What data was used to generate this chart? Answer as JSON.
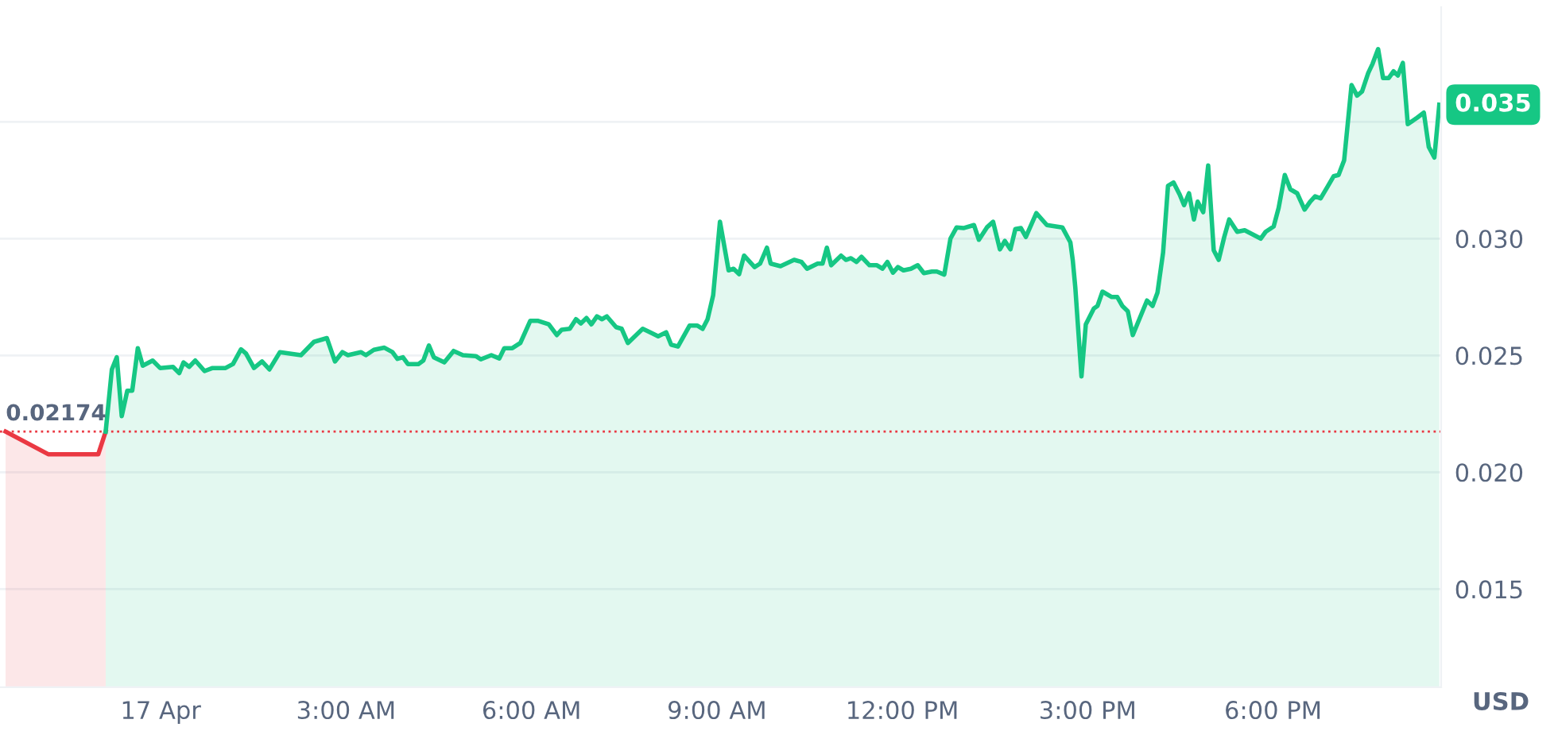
{
  "chart_data": {
    "type": "area",
    "xlim": [
      -2.6,
      20.72
    ],
    "ylim": [
      0.0108,
      0.0399
    ],
    "xticks": [
      {
        "value": 0,
        "label": "17 Apr"
      },
      {
        "value": 3,
        "label": "3:00 AM"
      },
      {
        "value": 6,
        "label": "6:00 AM"
      },
      {
        "value": 9,
        "label": "9:00 AM"
      },
      {
        "value": 12,
        "label": "12:00 PM"
      },
      {
        "value": 15,
        "label": "3:00 PM"
      },
      {
        "value": 18,
        "label": "6:00 PM"
      }
    ],
    "yticks": [
      0.015,
      {
        "value": 0.02,
        "label": "0.020"
      },
      0.025,
      {
        "value": 0.03,
        "label": "0.030"
      },
      {
        "value": 0.035,
        "label": null
      }
    ],
    "ylabel": "USD",
    "grid": "y",
    "legend": false,
    "ref_lines": [
      {
        "axis": "y",
        "value": 0.02174,
        "label": "0.02174",
        "color": "#ea3943",
        "line_style": "dotted"
      }
    ],
    "annotations": [
      {
        "text": "0.035",
        "x": 20.69,
        "y": 0.03573
      }
    ],
    "series": [
      {
        "color": "#ea3943",
        "x": [
          -2.51,
          -1.82,
          -1.01,
          -0.89
        ],
        "values": [
          0.02174,
          0.02077,
          0.02077,
          0.02174
        ]
      },
      {
        "color": "#16c784",
        "x": [
          -0.89,
          -0.79,
          -0.71,
          -0.63,
          -0.54,
          -0.46,
          -0.37,
          -0.29,
          -0.13,
          -0.01,
          0.2,
          0.3,
          0.37,
          0.46,
          0.56,
          0.71,
          0.84,
          1.05,
          1.17,
          1.3,
          1.38,
          1.51,
          1.64,
          1.76,
          1.93,
          2.27,
          2.48,
          2.69,
          2.82,
          2.94,
          3.03,
          3.24,
          3.32,
          3.45,
          3.62,
          3.75,
          3.83,
          3.92,
          4.0,
          4.17,
          4.25,
          4.34,
          4.42,
          4.59,
          4.74,
          4.89,
          5.1,
          5.18,
          5.35,
          5.48,
          5.56,
          5.69,
          5.82,
          5.98,
          6.11,
          6.28,
          6.41,
          6.49,
          6.62,
          6.72,
          6.8,
          6.89,
          6.97,
          7.06,
          7.14,
          7.22,
          7.37,
          7.46,
          7.56,
          7.8,
          7.92,
          8.05,
          8.18,
          8.26,
          8.37,
          8.56,
          8.68,
          8.77,
          8.85,
          8.94,
          9.05,
          9.19,
          9.27,
          9.36,
          9.44,
          9.61,
          9.7,
          9.81,
          9.87,
          10.03,
          10.25,
          10.37,
          10.46,
          10.63,
          10.71,
          10.78,
          10.85,
          11.01,
          11.09,
          11.17,
          11.26,
          11.34,
          11.47,
          11.59,
          11.68,
          11.76,
          11.85,
          11.93,
          12.02,
          12.14,
          12.25,
          12.35,
          12.48,
          12.56,
          12.68,
          12.78,
          12.88,
          12.99,
          13.16,
          13.24,
          13.37,
          13.47,
          13.58,
          13.66,
          13.75,
          13.83,
          13.92,
          14.0,
          14.17,
          14.34,
          14.59,
          14.72,
          14.76,
          14.8,
          14.9,
          14.97,
          15.1,
          15.16,
          15.24,
          15.39,
          15.48,
          15.56,
          15.65,
          15.73,
          15.96,
          16.05,
          16.13,
          16.22,
          16.3,
          16.39,
          16.49,
          16.56,
          16.64,
          16.72,
          16.78,
          16.87,
          16.95,
          17.04,
          17.12,
          17.21,
          17.29,
          17.42,
          17.54,
          17.67,
          17.8,
          17.88,
          18.01,
          18.09,
          18.19,
          18.28,
          18.39,
          18.51,
          18.6,
          18.68,
          18.77,
          18.89,
          18.98,
          19.06,
          19.15,
          19.27,
          19.36,
          19.44,
          19.54,
          19.61,
          19.7,
          19.78,
          19.87,
          19.95,
          20.02,
          20.1,
          20.18,
          20.33,
          20.44,
          20.52,
          20.61,
          20.69
        ],
        "values": [
          0.02174,
          0.0244,
          0.02492,
          0.0224,
          0.02349,
          0.02349,
          0.02531,
          0.02456,
          0.02478,
          0.02446,
          0.02451,
          0.02424,
          0.0247,
          0.02451,
          0.02478,
          0.02433,
          0.02446,
          0.02446,
          0.02463,
          0.02526,
          0.02508,
          0.02446,
          0.02474,
          0.0244,
          0.02514,
          0.02501,
          0.02558,
          0.02574,
          0.02474,
          0.02514,
          0.02501,
          0.02514,
          0.02501,
          0.02524,
          0.02533,
          0.02514,
          0.02485,
          0.02492,
          0.02463,
          0.02463,
          0.02478,
          0.02542,
          0.02492,
          0.0247,
          0.02519,
          0.02501,
          0.02497,
          0.02483,
          0.02501,
          0.02487,
          0.02531,
          0.02531,
          0.02553,
          0.02648,
          0.02648,
          0.02633,
          0.02587,
          0.0261,
          0.02614,
          0.02655,
          0.02637,
          0.0266,
          0.02633,
          0.02667,
          0.02655,
          0.02667,
          0.02621,
          0.02614,
          0.02553,
          0.02614,
          0.02599,
          0.02582,
          0.02599,
          0.02546,
          0.02538,
          0.02628,
          0.02628,
          0.02614,
          0.02655,
          0.02757,
          0.03072,
          0.02864,
          0.02871,
          0.02848,
          0.02927,
          0.02878,
          0.02893,
          0.02961,
          0.02893,
          0.02882,
          0.02909,
          0.029,
          0.02871,
          0.02893,
          0.02893,
          0.02961,
          0.02886,
          0.02927,
          0.02909,
          0.02916,
          0.029,
          0.02922,
          0.02886,
          0.02886,
          0.02871,
          0.029,
          0.02854,
          0.02878,
          0.02864,
          0.02871,
          0.02886,
          0.02852,
          0.02859,
          0.02859,
          0.02846,
          0.03,
          0.03048,
          0.03045,
          0.03058,
          0.02995,
          0.03048,
          0.03072,
          0.02954,
          0.0299,
          0.02954,
          0.03041,
          0.03045,
          0.03007,
          0.03109,
          0.03058,
          0.03048,
          0.02984,
          0.02905,
          0.02791,
          0.0241,
          0.02633,
          0.02701,
          0.02712,
          0.02773,
          0.0275,
          0.0275,
          0.02712,
          0.02689,
          0.02587,
          0.02735,
          0.02712,
          0.02769,
          0.02939,
          0.03226,
          0.0324,
          0.03188,
          0.03143,
          0.03194,
          0.03082,
          0.03158,
          0.03113,
          0.03313,
          0.0295,
          0.02909,
          0.03007,
          0.03082,
          0.03029,
          0.03036,
          0.03018,
          0.03,
          0.03029,
          0.03052,
          0.03131,
          0.03272,
          0.03211,
          0.03194,
          0.03124,
          0.03158,
          0.03181,
          0.03172,
          0.03226,
          0.03267,
          0.03272,
          0.03335,
          0.03657,
          0.03612,
          0.0363,
          0.03709,
          0.03748,
          0.03811,
          0.03687,
          0.03687,
          0.03716,
          0.03698,
          0.03752,
          0.0349,
          0.03517,
          0.03539,
          0.03392,
          0.03347,
          0.03573
        ]
      }
    ]
  }
}
